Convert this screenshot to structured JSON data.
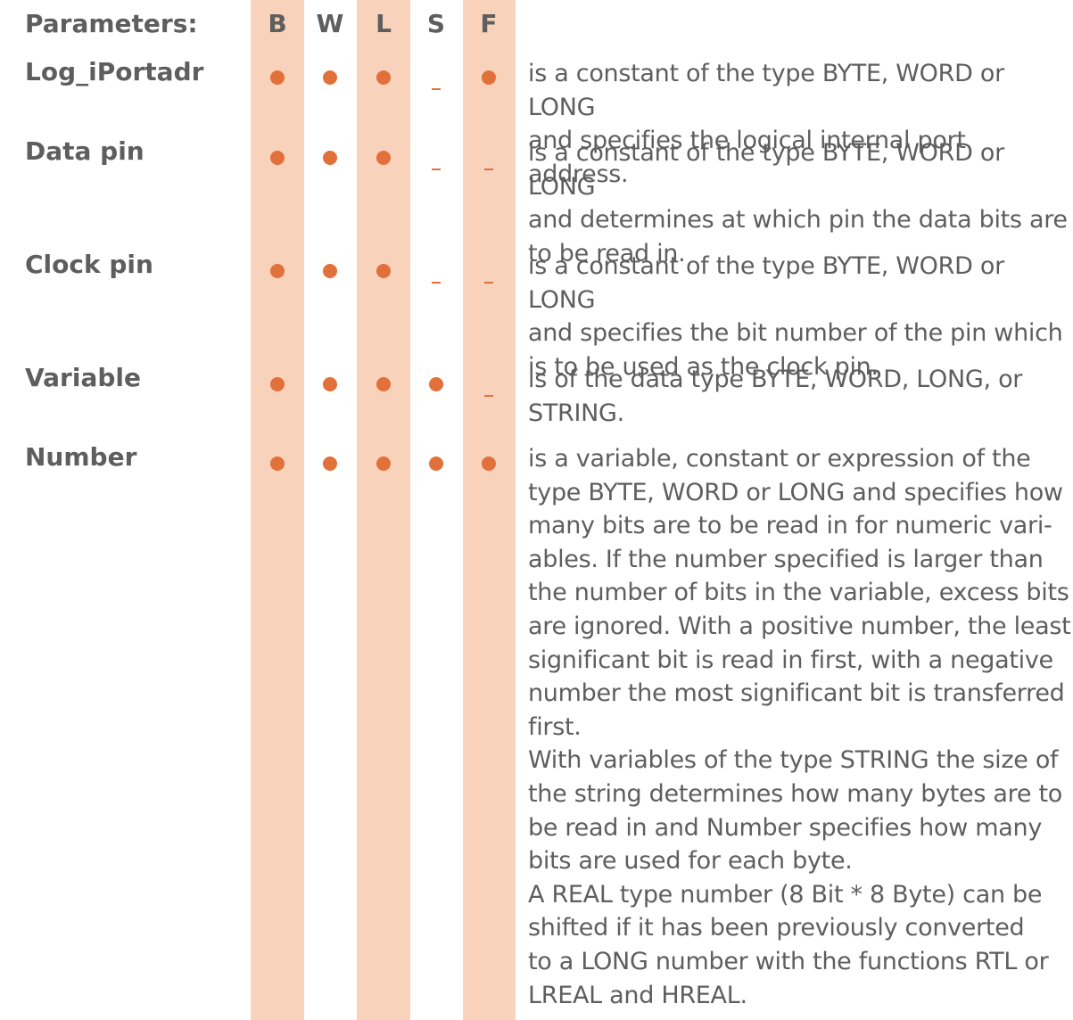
{
  "header": {
    "parameters_label": "Parameters:",
    "columns": [
      "B",
      "W",
      "L",
      "S",
      "F"
    ]
  },
  "rows": [
    {
      "name": "Log_iPortadr",
      "marks": [
        "dot",
        "dot",
        "dot",
        "dash",
        "dot"
      ],
      "description": "is a constant of the type BYTE, WORD or LONG\nand specifies the logical internal port address."
    },
    {
      "name": "Data pin",
      "marks": [
        "dot",
        "dot",
        "dot",
        "dash",
        "dash"
      ],
      "description": "is a constant of the type BYTE, WORD or LONG\nand determines at which pin the data bits are\nto be read in."
    },
    {
      "name": "Clock pin",
      "marks": [
        "dot",
        "dot",
        "dot",
        "dash",
        "dash"
      ],
      "description": "is a constant of the type BYTE, WORD or LONG\nand specifies the bit number of the pin which\nis to be used as the clock pin."
    },
    {
      "name": "Variable",
      "marks": [
        "dot",
        "dot",
        "dot",
        "dot",
        "dash"
      ],
      "description": "is of the data type BYTE, WORD, LONG, or\nSTRING."
    },
    {
      "name": "Number",
      "marks": [
        "dot",
        "dot",
        "dot",
        "dot",
        "dot"
      ],
      "description": "is a variable, constant or expression of the\ntype BYTE, WORD or LONG and specifies how\nmany bits are to be read in for numeric vari-\nables. If the number specified is larger than\nthe number of bits in the variable, excess bits\nare ignored. With a positive number, the least\nsignificant bit is read in first, with a negative\nnumber the most significant bit is transferred\nfirst.\nWith variables of the type STRING the size of\nthe string determines how many bytes are to\nbe read in and Number specifies how many\nbits are used for each byte.\nA REAL type number (8 Bit * 8 Byte) can be\nshifted if it has been previously converted\nto a LONG number with the functions RTL or\nLREAL and HREAL."
    }
  ],
  "colors": {
    "band": "#f8d2ba",
    "marker": "#e2703a",
    "text": "#5e5e5e"
  }
}
